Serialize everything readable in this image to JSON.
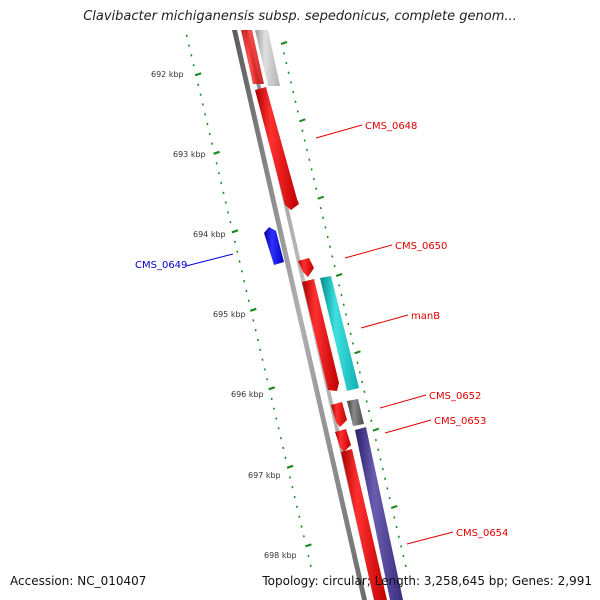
{
  "header": {
    "title": "Clavibacter michiganensis subsp. sepedonicus, complete genom..."
  },
  "footer": {
    "accession": "Accession: NC_010407",
    "summary": "Topology: circular; Length: 3,258,645 bp; Genes: 2,991"
  },
  "scale": {
    "ticks": [
      "692 kbp",
      "693 kbp",
      "694 kbp",
      "695 kbp",
      "696 kbp",
      "697 kbp",
      "698 kbp"
    ]
  },
  "genes": [
    {
      "name": "CMS_0648",
      "strand": "forward",
      "color": "#ff0000"
    },
    {
      "name": "CMS_0649",
      "strand": "reverse",
      "color": "#0000ff"
    },
    {
      "name": "CMS_0650",
      "strand": "forward",
      "color": "#ff0000"
    },
    {
      "name": "manB",
      "strand": "forward",
      "color": "#ff0000"
    },
    {
      "name": "CMS_0652",
      "strand": "forward",
      "color": "#ff0000"
    },
    {
      "name": "CMS_0653",
      "strand": "forward",
      "color": "#ff0000"
    },
    {
      "name": "CMS_0654",
      "strand": "forward",
      "color": "#ff0000"
    }
  ],
  "colors": {
    "forward_cds": "#ff0000",
    "reverse_cds": "#0000ff",
    "feature_grey": "#c8c8c8",
    "feature_cyan": "#18c8c8",
    "feature_darkgrey": "#666666",
    "feature_purple": "#4a3d8f",
    "scale_ticks": "#1a8a1a",
    "backbone": "#8a8a8a"
  }
}
